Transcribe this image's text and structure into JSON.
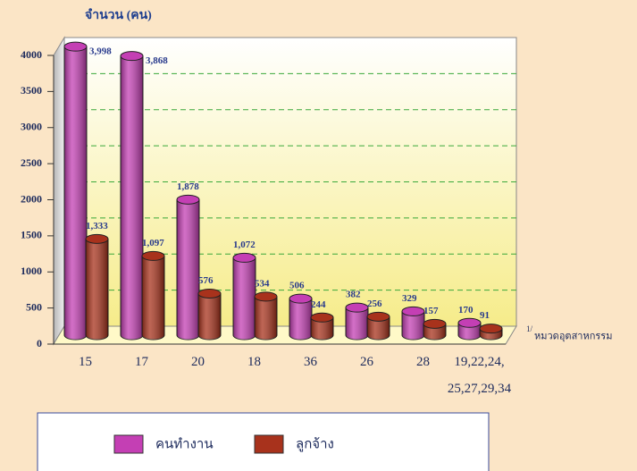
{
  "chart_data": {
    "type": "bar",
    "title": "จำนวน (คน)",
    "x_label": "หมวดอุตสาหกรรม",
    "x_label_marker": "1/",
    "categories": [
      "15",
      "17",
      "20",
      "18",
      "36",
      "26",
      "28",
      "19,22,24, 25,27,29,34"
    ],
    "series": [
      {
        "name": "คนทำงาน",
        "color": "#c43fb4",
        "values": [
          3998,
          3868,
          1878,
          1072,
          506,
          382,
          329,
          170
        ],
        "value_labels": [
          "3,998",
          "3,868",
          "1,878",
          "1,072",
          "506",
          "382",
          "329",
          "170"
        ]
      },
      {
        "name": "ลูกจ้าง",
        "color": "#a8321c",
        "values": [
          1333,
          1097,
          576,
          534,
          244,
          256,
          157,
          91
        ],
        "value_labels": [
          "1,333",
          "1,097",
          "576",
          "534",
          "244",
          "256",
          "157",
          "91"
        ]
      }
    ],
    "ylim": [
      0,
      4000
    ],
    "yticks": [
      0,
      500,
      1000,
      1500,
      2000,
      2500,
      3000,
      3500,
      4000
    ],
    "grid": true,
    "legend": "bottom"
  }
}
